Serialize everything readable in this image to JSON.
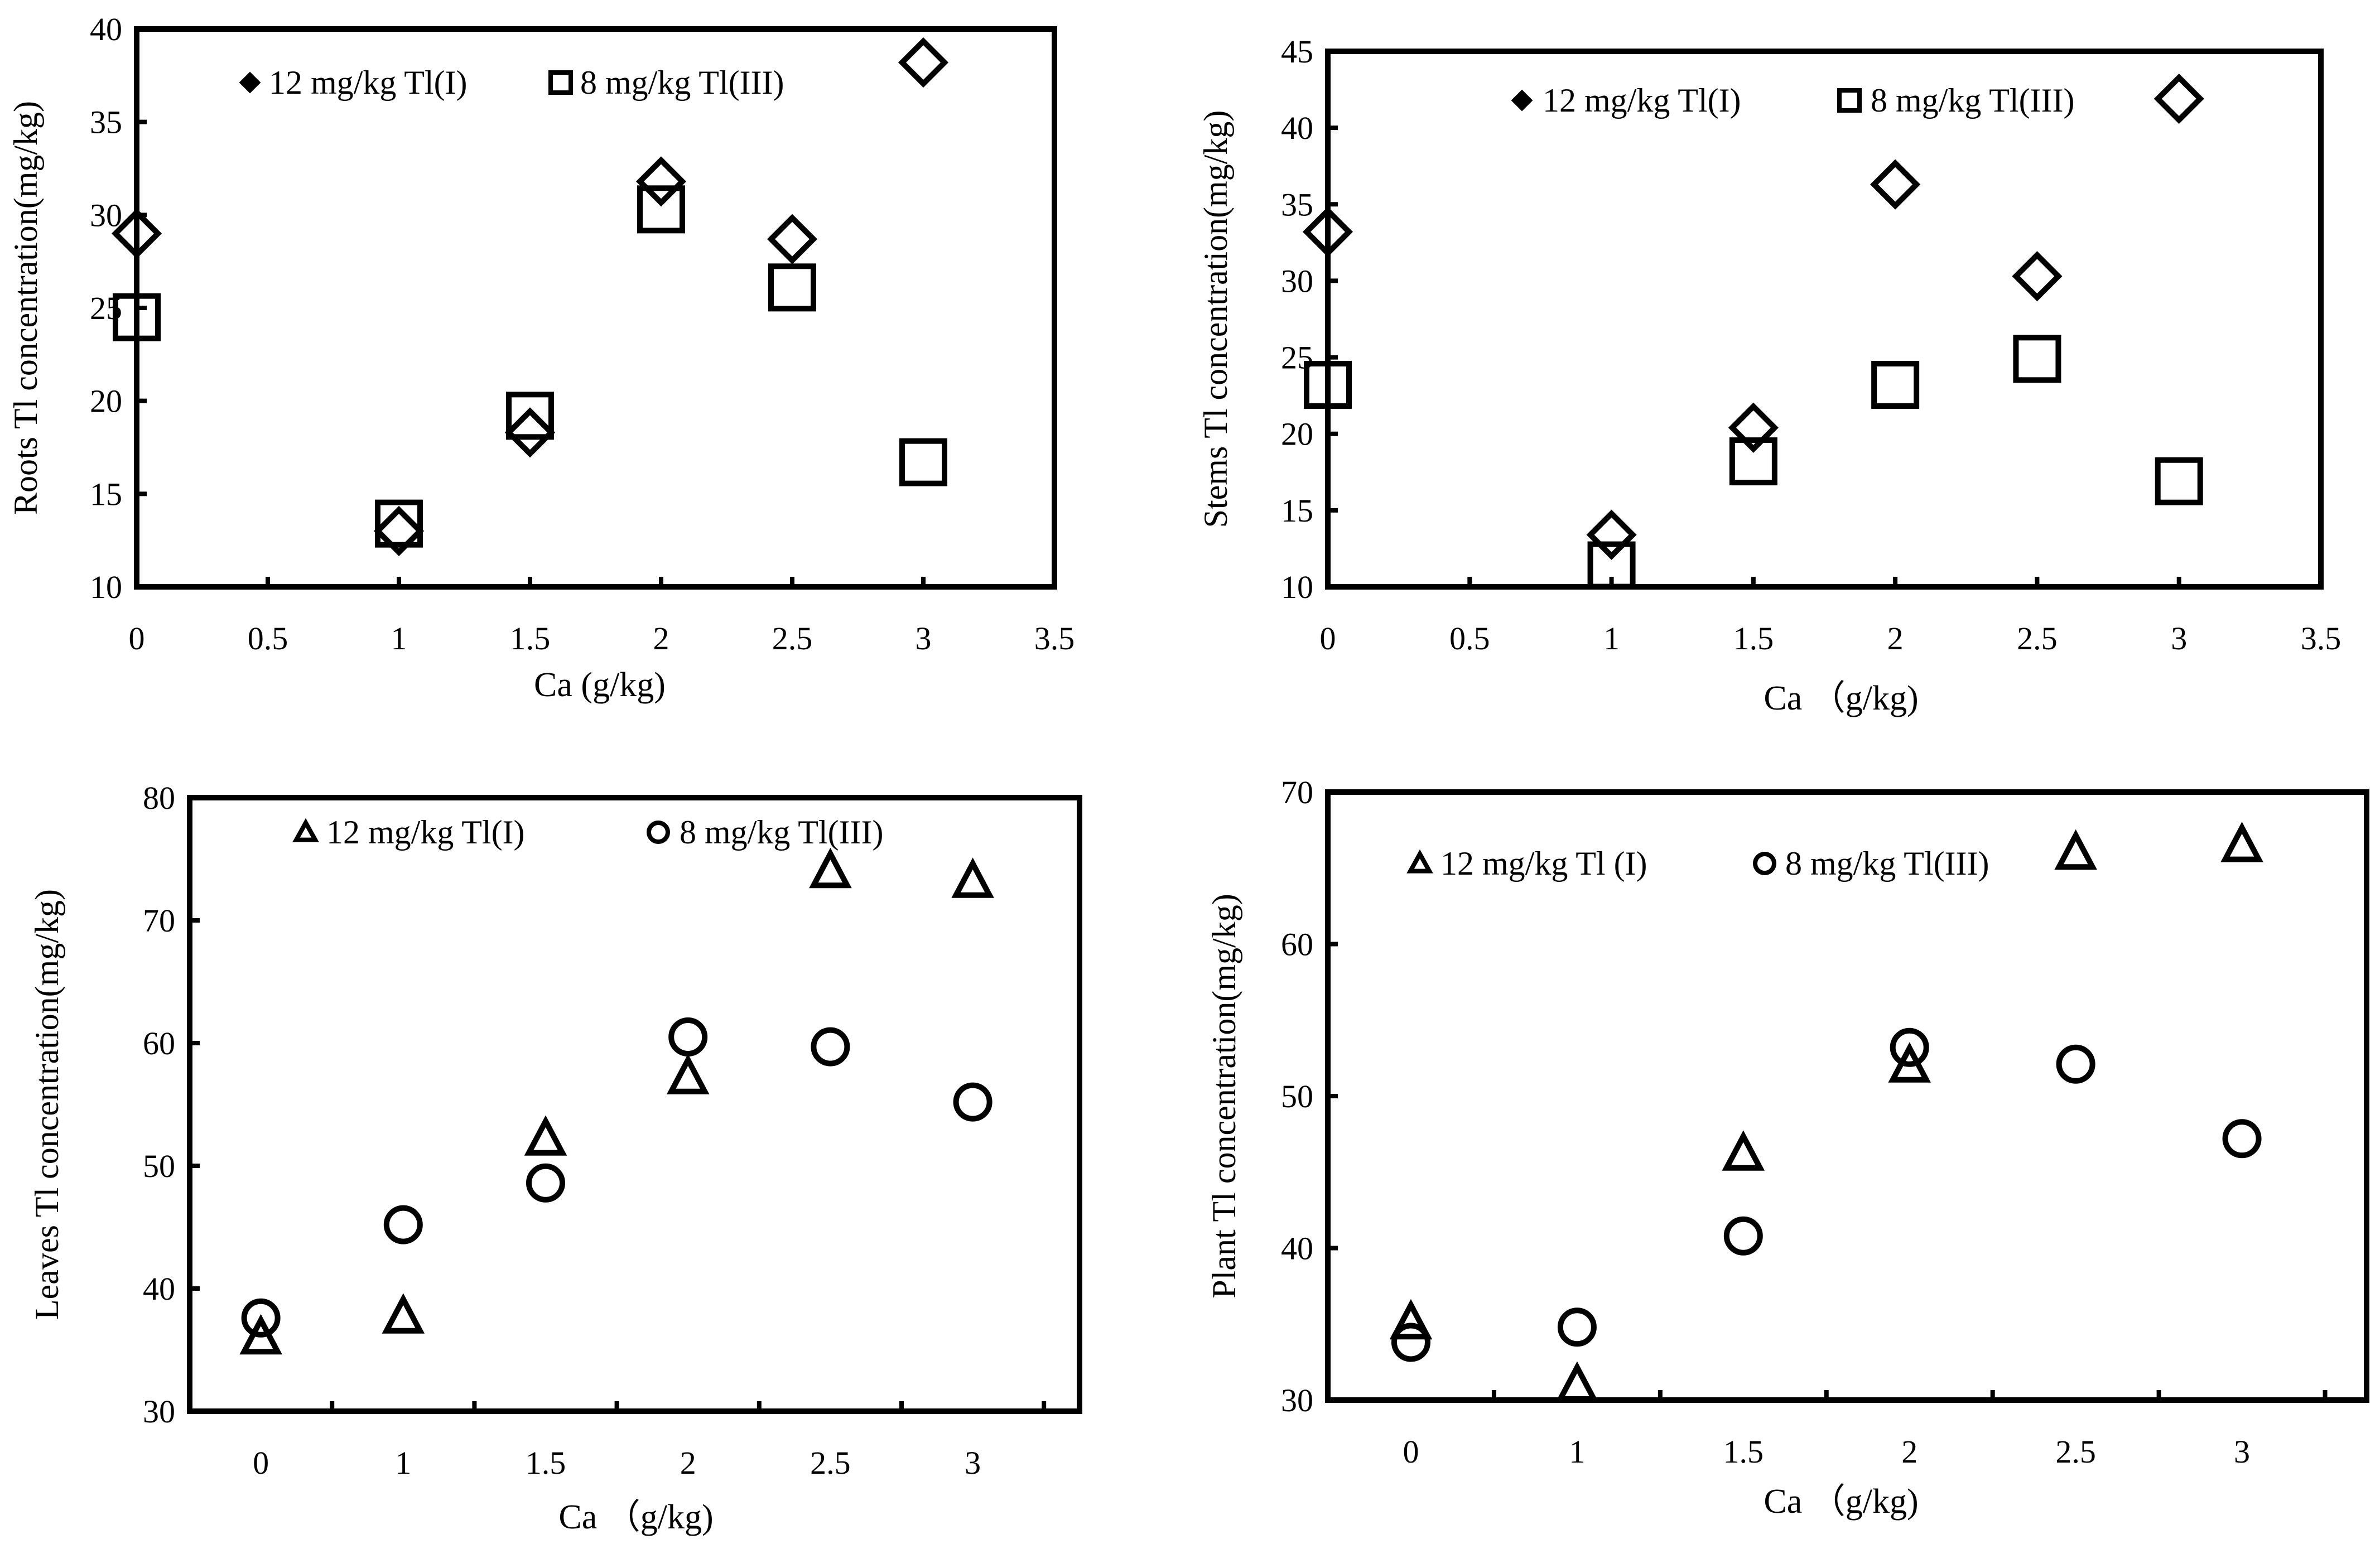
{
  "chart_data": [
    {
      "type": "scatter",
      "title": "",
      "xlabel": "Ca (g/kg)",
      "ylabel": "Roots Tl concentration(mg/kg)",
      "xlim": [
        0,
        3.5
      ],
      "ylim": [
        10,
        40
      ],
      "xticks": [
        "0",
        "0.5",
        "1",
        "1.5",
        "2",
        "2.5",
        "3",
        "3.5"
      ],
      "xtick_values": [
        0,
        0.5,
        1,
        1.5,
        2,
        2.5,
        3,
        3.5
      ],
      "yticks": [
        "10",
        "15",
        "20",
        "25",
        "30",
        "35",
        "40"
      ],
      "ytick_values": [
        10,
        15,
        20,
        25,
        30,
        35,
        40
      ],
      "series": [
        {
          "name": "12 mg/kg Tl(I)",
          "marker": "diamond",
          "x": [
            0,
            1,
            1.5,
            2,
            2.5,
            3
          ],
          "y": [
            29.0,
            13.0,
            18.3,
            31.8,
            28.7,
            38.2
          ]
        },
        {
          "name": "8 mg/kg Tl(III)",
          "marker": "square",
          "x": [
            0,
            1,
            1.5,
            2,
            2.5,
            3
          ],
          "y": [
            24.5,
            13.4,
            19.2,
            30.3,
            26.1,
            16.7
          ]
        }
      ]
    },
    {
      "type": "scatter",
      "title": "",
      "xlabel": "Ca （g/kg)",
      "ylabel": "Stems Tl concentration(mg/kg)",
      "xlim": [
        0,
        3.5
      ],
      "ylim": [
        10,
        45
      ],
      "xticks": [
        "0",
        "0.5",
        "1",
        "1.5",
        "2",
        "2.5",
        "3",
        "3.5"
      ],
      "xtick_values": [
        0,
        0.5,
        1,
        1.5,
        2,
        2.5,
        3,
        3.5
      ],
      "yticks": [
        "10",
        "15",
        "20",
        "25",
        "30",
        "35",
        "40",
        "45"
      ],
      "ytick_values": [
        10,
        15,
        20,
        25,
        30,
        35,
        40,
        45
      ],
      "series": [
        {
          "name": "12 mg/kg Tl(I)",
          "marker": "diamond",
          "x": [
            0,
            1,
            1.5,
            2,
            2.5,
            3
          ],
          "y": [
            33.2,
            13.4,
            20.4,
            36.3,
            30.3,
            41.9
          ]
        },
        {
          "name": "8 mg/kg Tl(III)",
          "marker": "square",
          "x": [
            0,
            1,
            1.5,
            2,
            2.5,
            3
          ],
          "y": [
            23.2,
            11.4,
            18.2,
            23.2,
            24.9,
            16.9
          ]
        }
      ]
    },
    {
      "type": "scatter",
      "title": "",
      "xlabel": "Ca （g/kg)",
      "ylabel": "Leaves Tl concentration(mg/kg)",
      "categories": [
        "0",
        "1",
        "1.5",
        "2",
        "2.5",
        "3"
      ],
      "ylim": [
        30,
        80
      ],
      "yticks": [
        "30",
        "40",
        "50",
        "60",
        "70",
        "80"
      ],
      "ytick_values": [
        30,
        40,
        50,
        60,
        70,
        80
      ],
      "series": [
        {
          "name": "12 mg/kg Tl(I)",
          "marker": "triangle",
          "values": [
            36.0,
            37.7,
            52.2,
            57.2,
            74.0,
            73.2
          ]
        },
        {
          "name": "8 mg/kg Tl(III)",
          "marker": "circle",
          "values": [
            37.6,
            45.2,
            48.6,
            60.5,
            59.7,
            55.2
          ]
        }
      ]
    },
    {
      "type": "scatter",
      "title": "",
      "xlabel": "Ca （g/kg)",
      "ylabel": "Plant Tl concentration(mg/kg)",
      "categories": [
        "0",
        "1",
        "1.5",
        "2",
        "2.5",
        "3"
      ],
      "ylim": [
        30,
        70
      ],
      "yticks": [
        "30",
        "40",
        "50",
        "60",
        "70"
      ],
      "ytick_values": [
        30,
        40,
        50,
        60,
        70
      ],
      "series": [
        {
          "name": "12 mg/kg Tl (I)",
          "marker": "triangle",
          "values": [
            35.1,
            31.0,
            46.2,
            52.0,
            66.0,
            66.5
          ]
        },
        {
          "name": "8 mg/kg Tl(III)",
          "marker": "circle",
          "values": [
            33.8,
            34.8,
            40.8,
            53.2,
            52.1,
            47.2
          ]
        }
      ]
    }
  ]
}
